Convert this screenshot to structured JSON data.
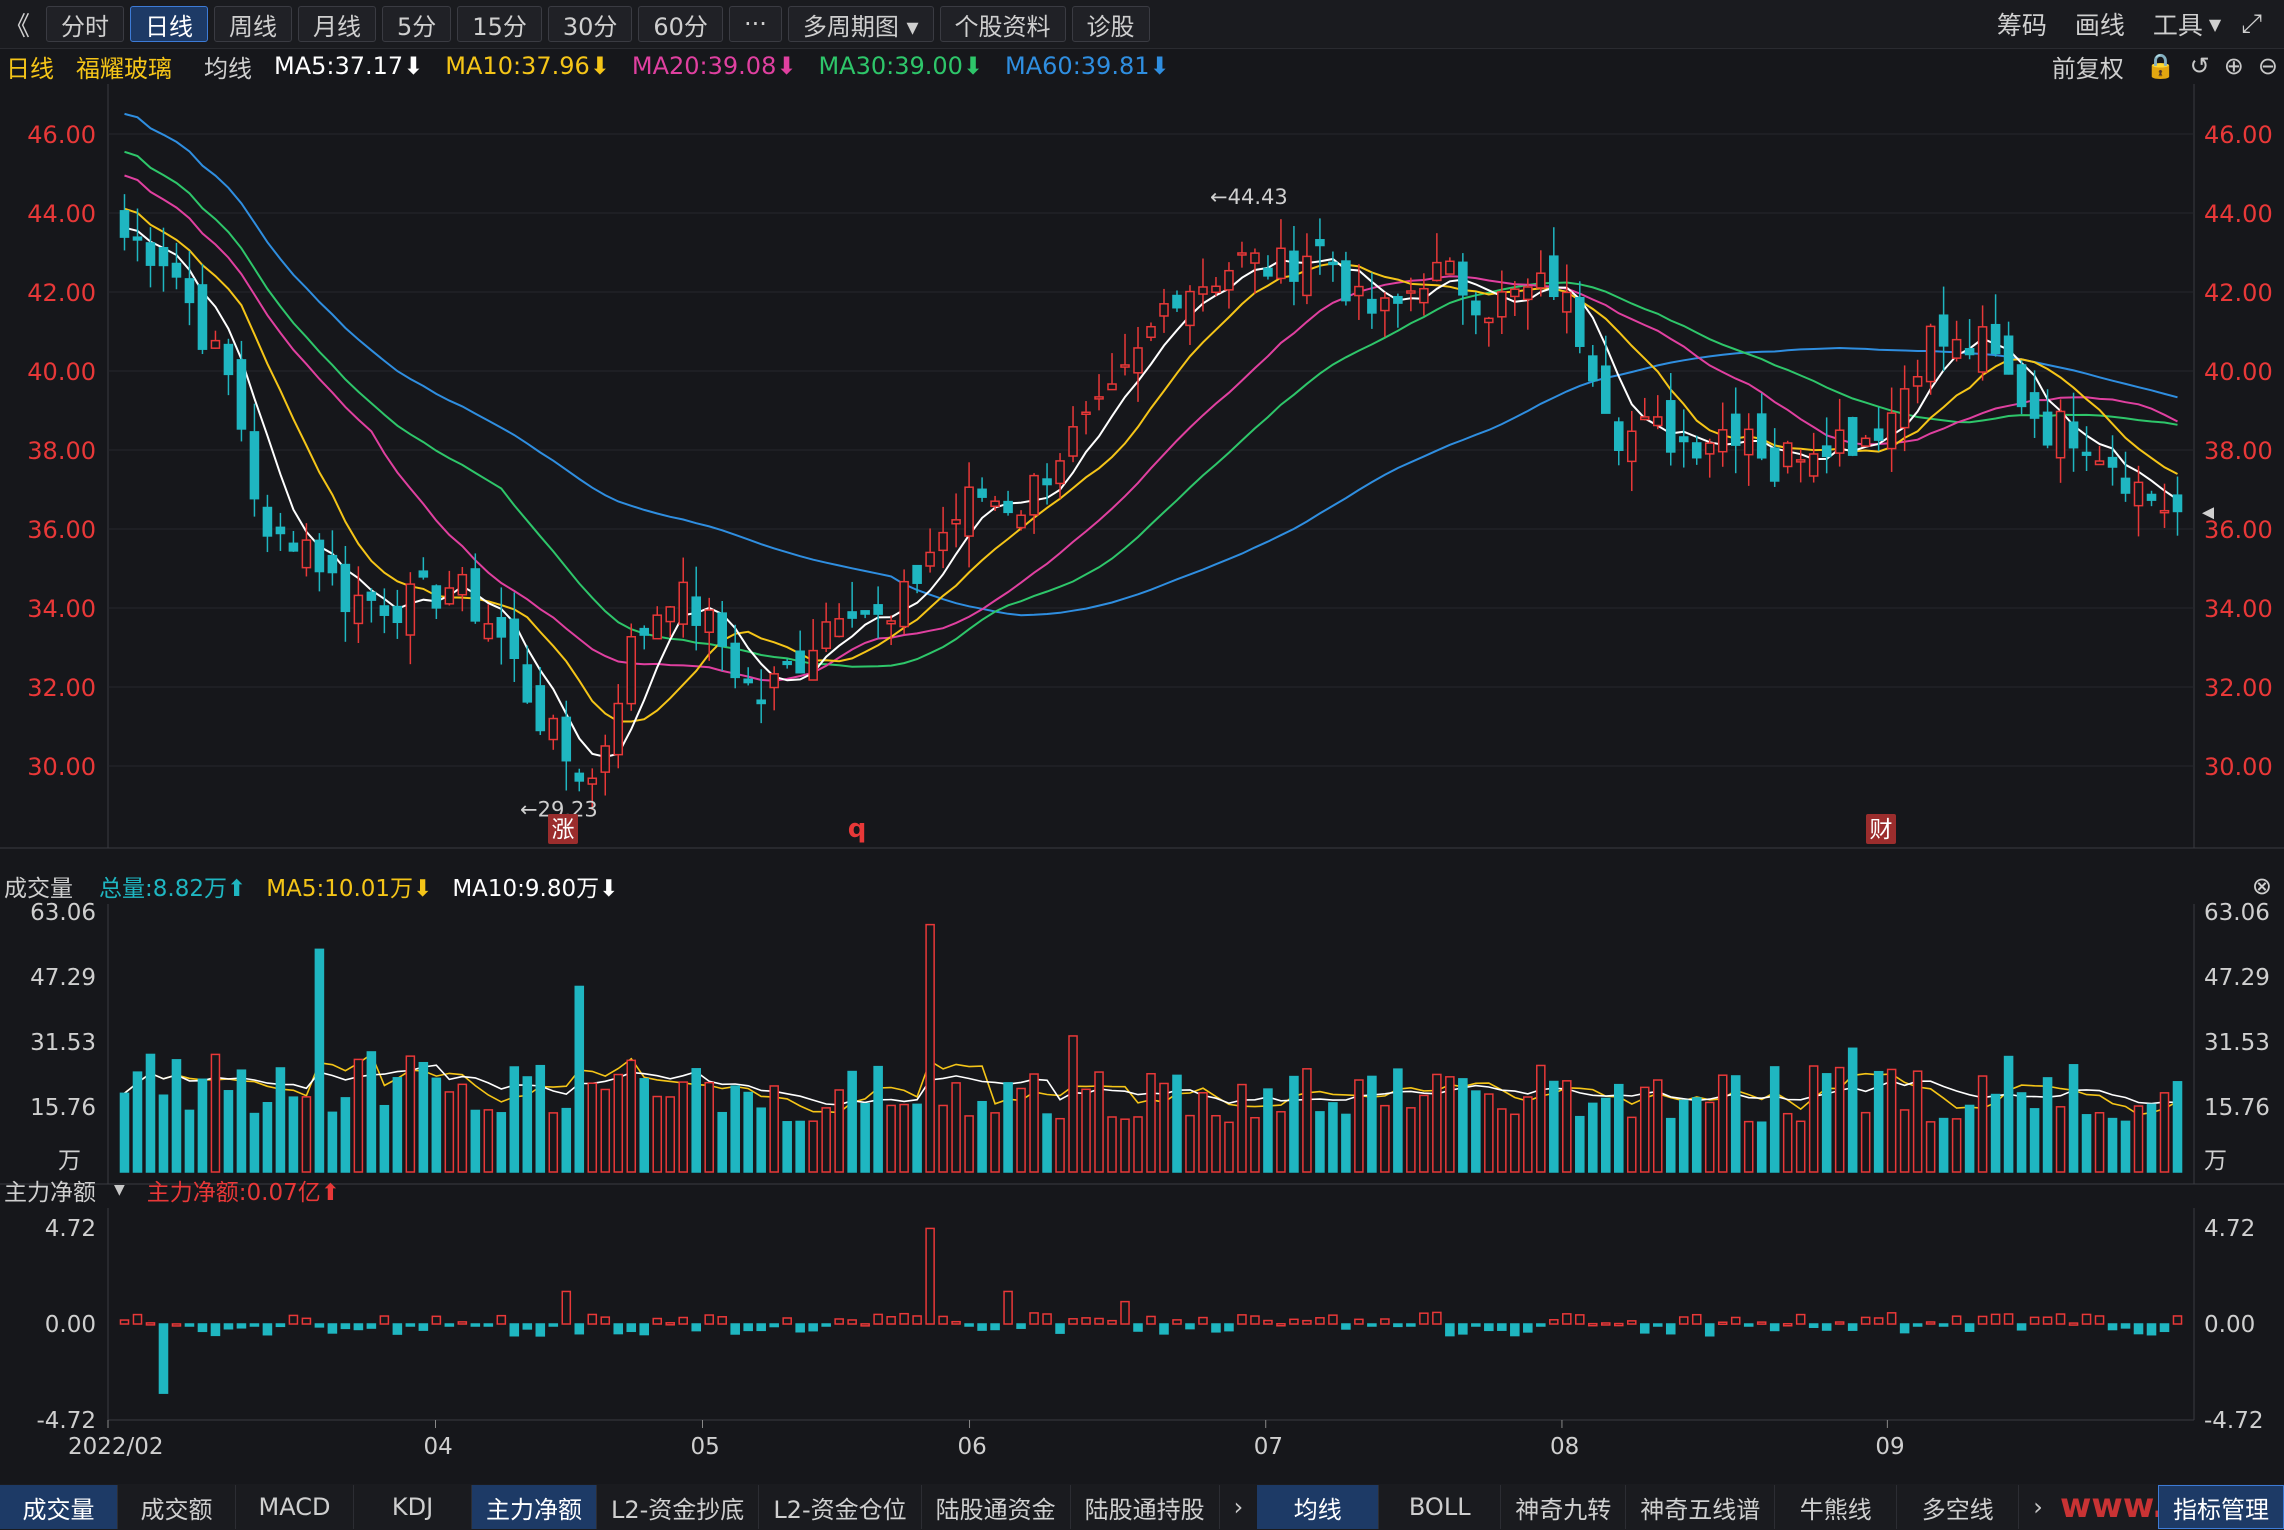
{
  "toolbar": {
    "collapse_glyph": "《",
    "buttons": [
      "分时",
      "日线",
      "周线",
      "月线",
      "5分",
      "15分",
      "30分",
      "60分",
      "···",
      "多周期图",
      "个股资料",
      "诊股"
    ],
    "active": "日线",
    "right": [
      "筹码",
      "画线",
      "工具"
    ]
  },
  "info": {
    "period": "日线",
    "stock": "福耀玻璃",
    "label": "均线",
    "ma": [
      {
        "text": "MA5:37.17",
        "color": "#ffffff"
      },
      {
        "text": "MA10:37.96",
        "color": "#f5c518"
      },
      {
        "text": "MA20:39.08",
        "color": "#e040a0"
      },
      {
        "text": "MA30:39.00",
        "color": "#2ec66a"
      },
      {
        "text": "MA60:39.81",
        "color": "#2f8ee0"
      }
    ],
    "adjust": "前复权"
  },
  "panel2": {
    "title": "成交量",
    "items": [
      {
        "text": "总量:8.82万",
        "color": "#1fb6c1"
      },
      {
        "text": "MA5:10.01万",
        "color": "#f5c518"
      },
      {
        "text": "MA10:9.80万",
        "color": "#ffffff"
      }
    ],
    "unit": "万",
    "ticks": [
      "63.06",
      "47.29",
      "31.53",
      "15.76"
    ]
  },
  "panel3": {
    "title": "主力净额",
    "value": "主力净额:0.07亿",
    "ticks": [
      "4.72",
      "0.00",
      "-4.72"
    ]
  },
  "chart_data": {
    "type": "candlestick",
    "title": "福耀玻璃 日线",
    "price_ticks": [
      "46.00",
      "44.00",
      "42.00",
      "40.00",
      "38.00",
      "36.00",
      "34.00",
      "32.00",
      "30.00"
    ],
    "ylim": [
      29.0,
      46.5
    ],
    "annotations": [
      {
        "text": "←44.43",
        "value": 44.43
      },
      {
        "text": "←29.23",
        "value": 29.23
      }
    ],
    "markers": [
      "涨",
      "q",
      "财"
    ],
    "x_labels": [
      "2022/02",
      "04",
      "05",
      "06",
      "07",
      "08",
      "09"
    ],
    "candle_count": 159,
    "ma_last": {
      "MA5": 37.17,
      "MA10": 37.96,
      "MA20": 39.08,
      "MA30": 39.0,
      "MA60": 39.81
    },
    "series_colors": {
      "MA5": "#ffffff",
      "MA10": "#f5c518",
      "MA20": "#e040a0",
      "MA30": "#2ec66a",
      "MA60": "#2f8ee0",
      "up": "#e83838",
      "down": "#1fb6c1"
    }
  },
  "bottom_tabs": {
    "left": [
      "成交量",
      "成交额",
      "MACD",
      "KDJ",
      "主力净额",
      "L2-资金抄底",
      "L2-资金仓位",
      "陆股通资金",
      "陆股通持股"
    ],
    "right": [
      "均线",
      "BOLL",
      "神奇九转",
      "神奇五线谱",
      "牛熊线",
      "多空线"
    ],
    "end": "指标管理",
    "active_left": [
      "成交量",
      "主力净额"
    ],
    "active_right": "均线",
    "watermark": "www.ddgp.me"
  }
}
